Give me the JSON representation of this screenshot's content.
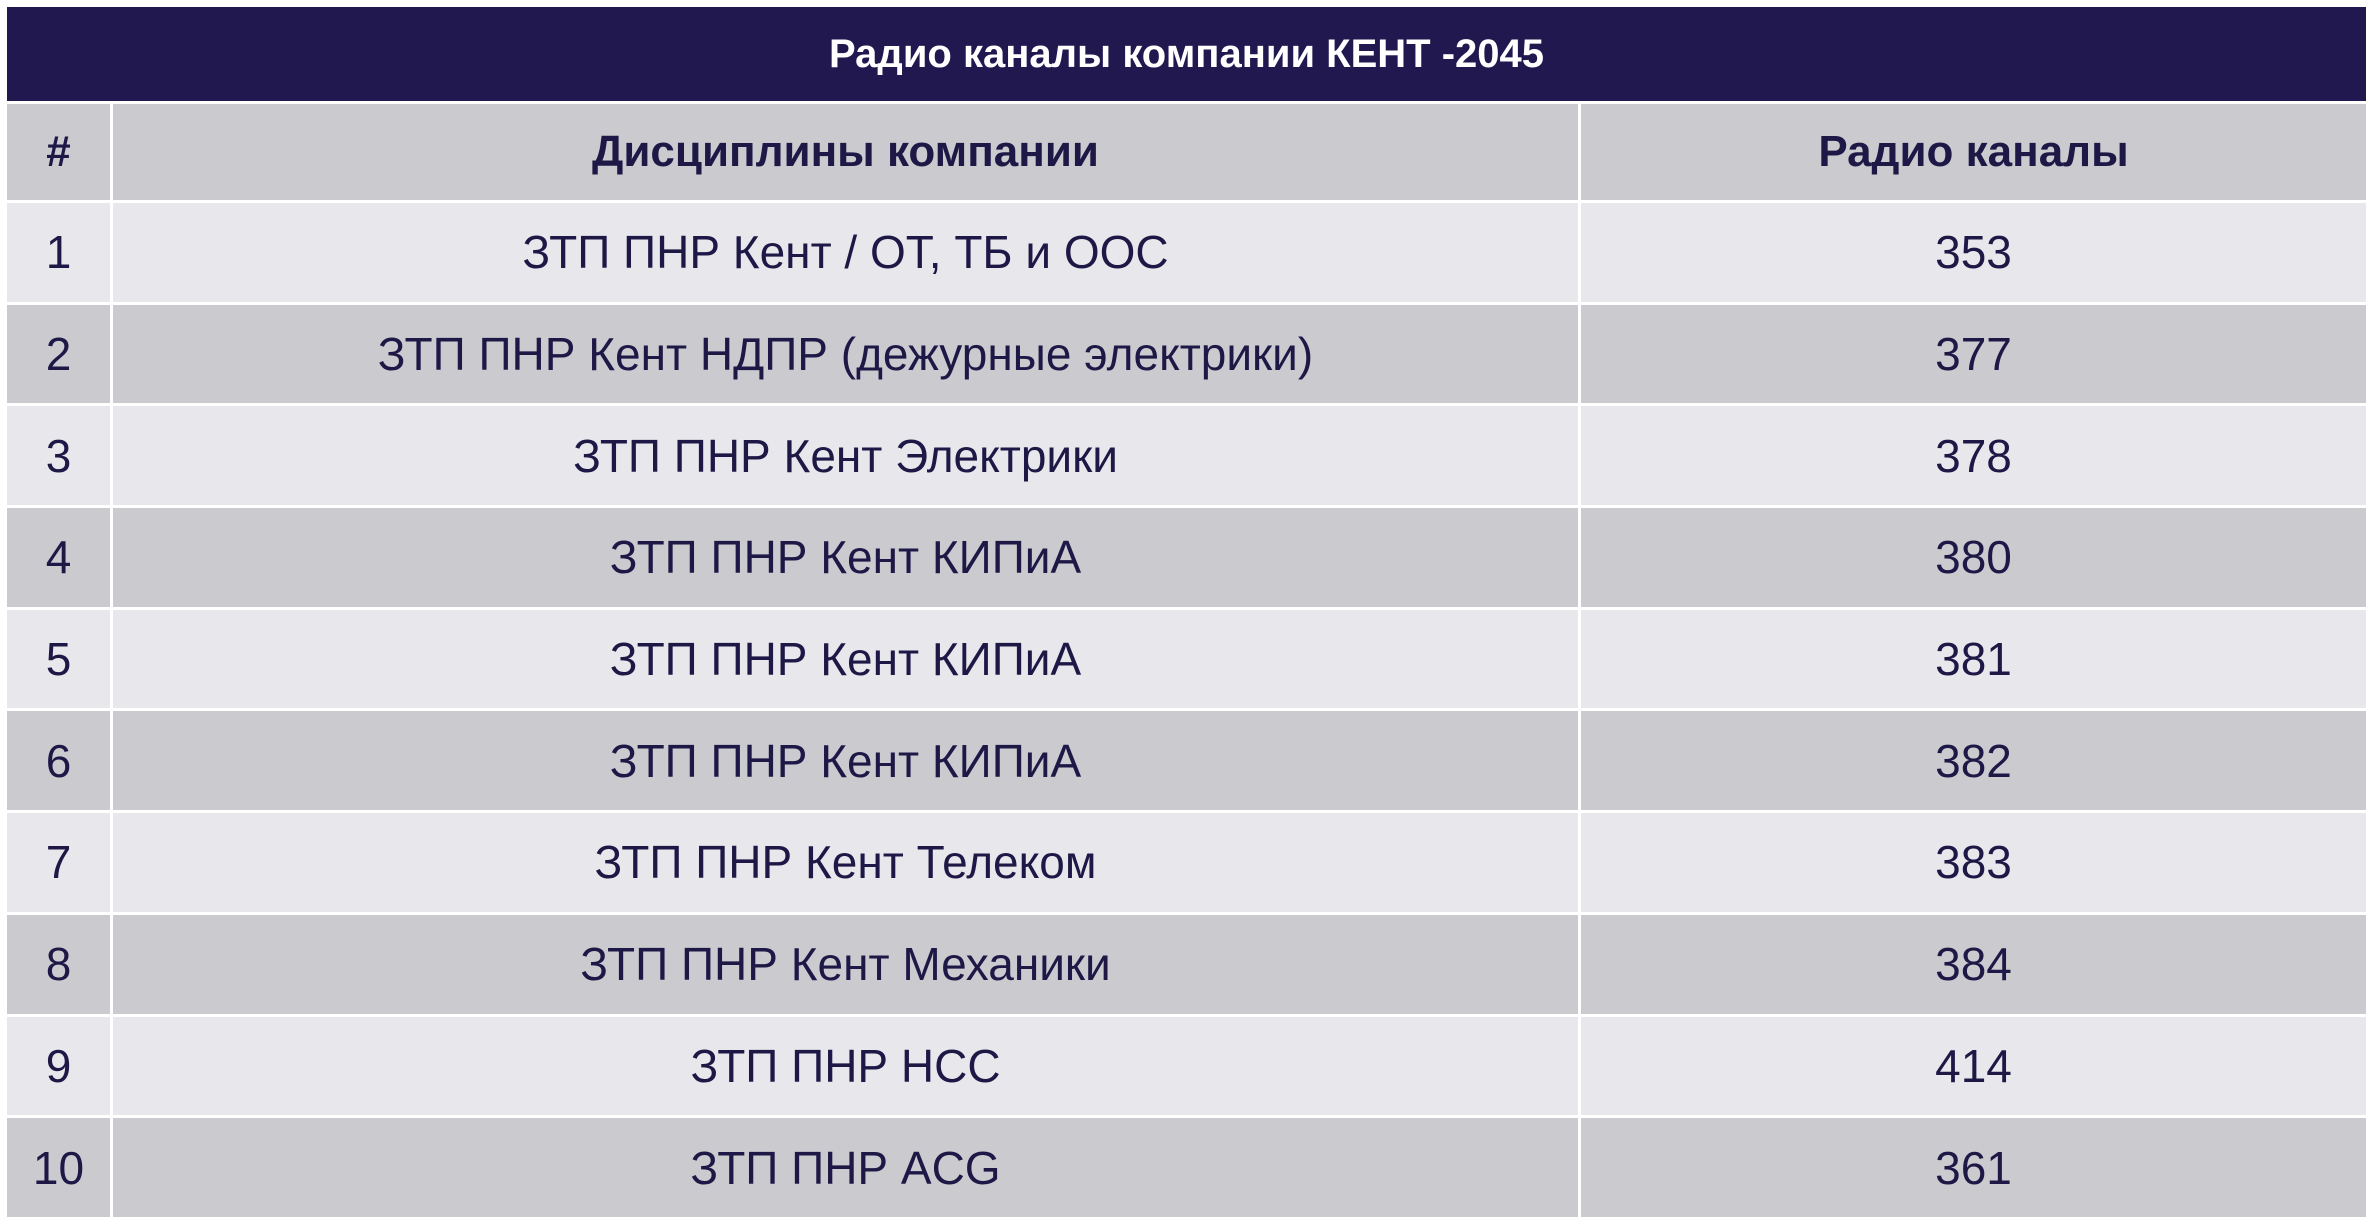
{
  "title": "Радио каналы компании КЕНТ -2045",
  "headers": {
    "num": "#",
    "discipline": "Дисциплины компании",
    "channel": "Радио каналы"
  },
  "rows": [
    {
      "num": "1",
      "discipline": "ЗТП ПНР Кент / ОТ, ТБ и ООС",
      "channel": "353"
    },
    {
      "num": "2",
      "discipline": "ЗТП ПНР Кент НДПР (дежурные электрики)",
      "channel": "377"
    },
    {
      "num": "3",
      "discipline": "ЗТП ПНР Кент Электрики",
      "channel": "378"
    },
    {
      "num": "4",
      "discipline": "ЗТП ПНР Кент КИПиА",
      "channel": "380"
    },
    {
      "num": "5",
      "discipline": "ЗТП ПНР Кент КИПиА",
      "channel": "381"
    },
    {
      "num": "6",
      "discipline": "ЗТП ПНР Кент КИПиА",
      "channel": "382"
    },
    {
      "num": "7",
      "discipline": "ЗТП ПНР Кент Телеком",
      "channel": "383"
    },
    {
      "num": "8",
      "discipline": "ЗТП ПНР Кент Механики",
      "channel": "384"
    },
    {
      "num": "9",
      "discipline": "ЗТП ПНР НСС",
      "channel": "414"
    },
    {
      "num": "10",
      "discipline": "ЗТП ПНР ACG",
      "channel": "361"
    }
  ],
  "colors": {
    "title_bg": "#221850",
    "header_bg": "#cacacf",
    "row_light": "#e8e8ec",
    "row_dark": "#cacacf",
    "text": "#1e1846"
  }
}
